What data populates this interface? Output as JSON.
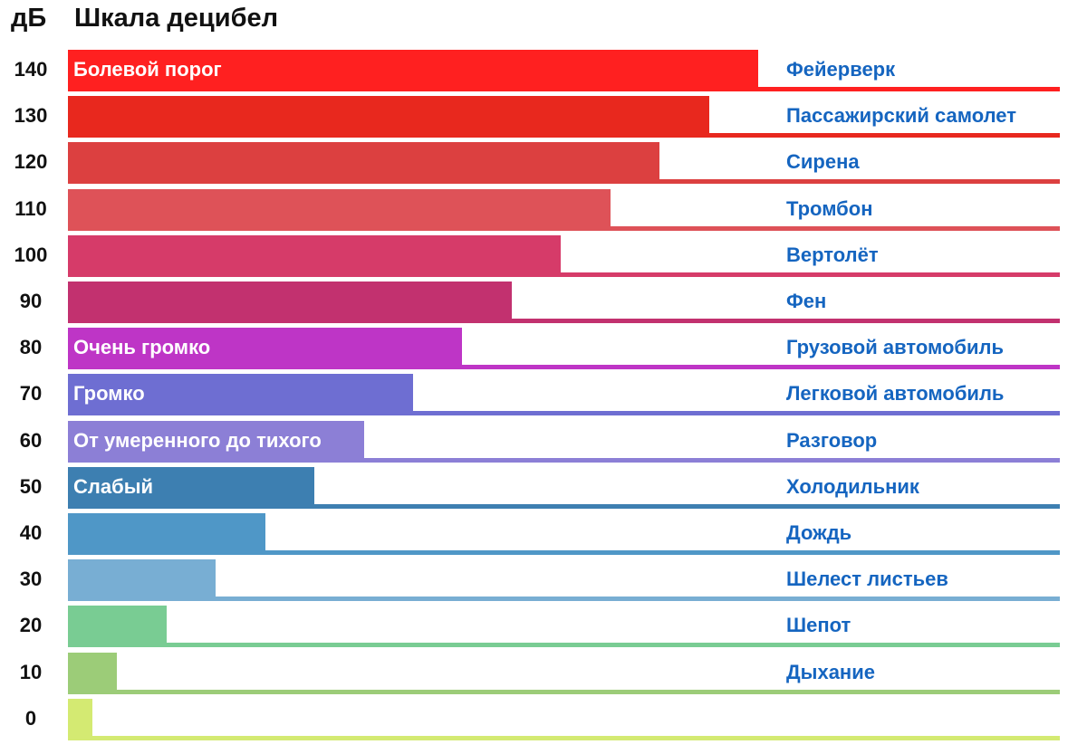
{
  "chart_data": {
    "type": "bar",
    "orientation": "horizontal",
    "title": "Шкала децибел",
    "unit_label": "дБ",
    "xlim": [
      0,
      150
    ],
    "rows": [
      {
        "db": 140,
        "value": 140,
        "bar_label": "Болевой порог",
        "example": "Фейерверк",
        "color": "#ff2020"
      },
      {
        "db": 130,
        "value": 130,
        "bar_label": "",
        "example": "Пассажирский самолет",
        "color": "#e8281e"
      },
      {
        "db": 120,
        "value": 120,
        "bar_label": "",
        "example": "Сирена",
        "color": "#dc4040"
      },
      {
        "db": 110,
        "value": 110,
        "bar_label": "",
        "example": "Тромбон",
        "color": "#de5258"
      },
      {
        "db": 100,
        "value": 100,
        "bar_label": "",
        "example": "Вертолёт",
        "color": "#d63b69"
      },
      {
        "db": 90,
        "value": 90,
        "bar_label": "",
        "example": "Фен",
        "color": "#c2316f"
      },
      {
        "db": 80,
        "value": 80,
        "bar_label": "Очень громко",
        "example": "Грузовой автомобиль",
        "color": "#be35c6"
      },
      {
        "db": 70,
        "value": 70,
        "bar_label": "Громко",
        "example": "Легковой автомобиль",
        "color": "#6e6ed2"
      },
      {
        "db": 60,
        "value": 60,
        "bar_label": "От умеренного до тихого",
        "example": "Разговор",
        "color": "#8c7fd6"
      },
      {
        "db": 50,
        "value": 50,
        "bar_label": "Слабый",
        "example": "Холодильник",
        "color": "#3d7fb1"
      },
      {
        "db": 40,
        "value": 40,
        "bar_label": "",
        "example": "Дождь",
        "color": "#4f97c7"
      },
      {
        "db": 30,
        "value": 30,
        "bar_label": "",
        "example": "Шелест листьев",
        "color": "#78aed3"
      },
      {
        "db": 20,
        "value": 20,
        "bar_label": "",
        "example": "Шепот",
        "color": "#79cc93"
      },
      {
        "db": 10,
        "value": 10,
        "bar_label": "",
        "example": "Дыхание",
        "color": "#9ccc78"
      },
      {
        "db": 0,
        "value": 5,
        "bar_label": "",
        "example": "",
        "color": "#d4ea72"
      }
    ]
  }
}
